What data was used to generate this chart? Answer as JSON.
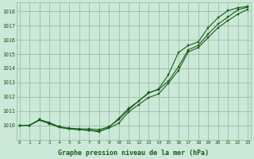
{
  "title": "Graphe pression niveau de la mer (hPa)",
  "xlabel_ticks": [
    "0",
    "1",
    "2",
    "3",
    "4",
    "5",
    "6",
    "7",
    "8",
    "9",
    "10",
    "11",
    "12",
    "13",
    "14",
    "15",
    "16",
    "17",
    "18",
    "19",
    "20",
    "21",
    "22",
    "23"
  ],
  "ylim": [
    1009.0,
    1018.6
  ],
  "yticks": [
    1010,
    1011,
    1012,
    1013,
    1014,
    1015,
    1016,
    1017,
    1018
  ],
  "xlim": [
    -0.3,
    23.3
  ],
  "bg_color": "#cce8d8",
  "grid_color": "#88bb99",
  "line_color": "#1a5c1a",
  "line1": [
    1010.0,
    1010.0,
    1010.4,
    1010.2,
    1009.9,
    1009.8,
    1009.75,
    1009.75,
    1009.7,
    1009.9,
    1010.4,
    1011.1,
    1011.7,
    1012.3,
    1012.5,
    1013.1,
    1014.1,
    1015.3,
    1015.6,
    1016.4,
    1017.1,
    1017.6,
    1018.1,
    1018.3
  ],
  "line2": [
    1010.0,
    1010.0,
    1010.35,
    1010.15,
    1009.85,
    1009.75,
    1009.7,
    1009.65,
    1009.6,
    1009.8,
    1010.15,
    1010.95,
    1011.45,
    1011.95,
    1012.2,
    1012.95,
    1013.85,
    1015.15,
    1015.45,
    1016.15,
    1016.85,
    1017.35,
    1017.8,
    1018.15
  ],
  "line3": [
    1010.0,
    1010.0,
    1010.4,
    1010.1,
    1009.9,
    1009.75,
    1009.7,
    1009.65,
    1009.55,
    1009.85,
    1010.5,
    1011.2,
    1011.7,
    1012.25,
    1012.55,
    1013.55,
    1015.1,
    1015.6,
    1015.85,
    1016.85,
    1017.55,
    1018.05,
    1018.25,
    1018.35
  ]
}
